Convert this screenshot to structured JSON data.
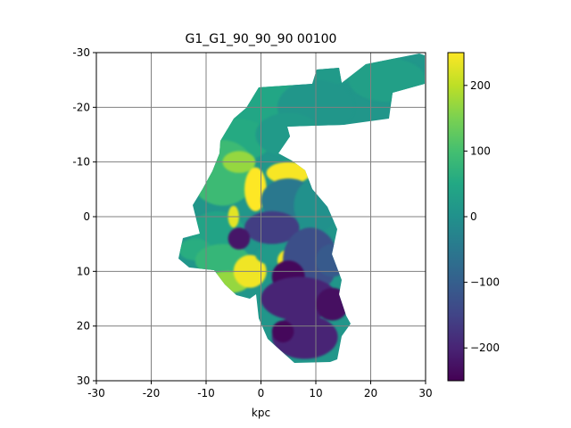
{
  "chart_data": {
    "type": "heatmap",
    "title": "G1_G1_90_90_90   00100",
    "xlabel": "kpc",
    "ylabel": "",
    "xlim": [
      -30,
      30
    ],
    "ylim": [
      -30,
      30
    ],
    "y_inverted": true,
    "x_ticks": [
      -30,
      -20,
      -10,
      0,
      10,
      20,
      30
    ],
    "y_ticks": [
      -30,
      -20,
      -10,
      0,
      10,
      20,
      30
    ],
    "x_tick_labels": [
      "-30",
      "-20",
      "-10",
      "0",
      "10",
      "20",
      "30"
    ],
    "y_tick_labels": [
      "-30",
      "-20",
      "-10",
      "0",
      "10",
      "20",
      "30"
    ],
    "grid": true,
    "colormap": "viridis",
    "colorbar": {
      "vmin": -250,
      "vmax": 250,
      "ticks": [
        200,
        100,
        0,
        -100,
        -200
      ],
      "tick_labels": [
        "200",
        "100",
        "0",
        "−100",
        "−200"
      ]
    },
    "regions": [
      {
        "x": 7,
        "y": -28,
        "rx": 19,
        "ry": 4,
        "value": 20
      },
      {
        "x": 23,
        "y": -25,
        "rx": 7,
        "ry": 4,
        "value": 30
      },
      {
        "x": 0,
        "y": -20,
        "rx": 13,
        "ry": 6,
        "value": 45
      },
      {
        "x": 10,
        "y": -20,
        "rx": 7,
        "ry": 5,
        "value": 10
      },
      {
        "x": -5,
        "y": -14,
        "rx": 7,
        "ry": 4,
        "value": 55
      },
      {
        "x": 5,
        "y": -15,
        "rx": 6,
        "ry": 4,
        "value": 20
      },
      {
        "x": -7,
        "y": -8,
        "rx": 6,
        "ry": 6,
        "value": 90
      },
      {
        "x": -4,
        "y": -10,
        "rx": 3,
        "ry": 2,
        "value": 170
      },
      {
        "x": -8,
        "y": 3,
        "rx": 5,
        "ry": 4,
        "value": 40
      },
      {
        "x": -12,
        "y": 6,
        "rx": 3,
        "ry": 2,
        "value": 60
      },
      {
        "x": -7,
        "y": 8,
        "rx": 5,
        "ry": 3,
        "value": 80
      },
      {
        "x": -6,
        "y": 12,
        "rx": 4,
        "ry": 2,
        "value": 170
      },
      {
        "x": -2,
        "y": 10,
        "rx": 3,
        "ry": 3,
        "value": 240
      },
      {
        "x": -1,
        "y": -5,
        "rx": 2,
        "ry": 4,
        "value": 250
      },
      {
        "x": -5,
        "y": 0,
        "rx": 1,
        "ry": 2,
        "value": 230
      },
      {
        "x": 5,
        "y": -8,
        "rx": 4,
        "ry": 2,
        "value": 245
      },
      {
        "x": 3,
        "y": 7,
        "rx": 4,
        "ry": 2,
        "value": 20
      },
      {
        "x": 5,
        "y": 8,
        "rx": 2,
        "ry": 2,
        "value": 240
      },
      {
        "x": 5,
        "y": -3,
        "rx": 5,
        "ry": 4,
        "value": -50
      },
      {
        "x": 10,
        "y": -2,
        "rx": 4,
        "ry": 5,
        "value": 0
      },
      {
        "x": 2,
        "y": 2,
        "rx": 5,
        "ry": 3,
        "value": -160
      },
      {
        "x": -4,
        "y": 4,
        "rx": 2,
        "ry": 2,
        "value": -220
      },
      {
        "x": 9,
        "y": 8,
        "rx": 5,
        "ry": 6,
        "value": -130
      },
      {
        "x": 5,
        "y": 11,
        "rx": 3,
        "ry": 3,
        "value": -240
      },
      {
        "x": 13,
        "y": 8,
        "rx": 3,
        "ry": 3,
        "value": -110
      },
      {
        "x": 7,
        "y": 15,
        "rx": 7,
        "ry": 4,
        "value": -200
      },
      {
        "x": 13,
        "y": 16,
        "rx": 3,
        "ry": 3,
        "value": -230
      },
      {
        "x": 8,
        "y": 22,
        "rx": 6,
        "ry": 4,
        "value": -200
      },
      {
        "x": 4,
        "y": 21,
        "rx": 2,
        "ry": 2,
        "value": -240
      }
    ]
  }
}
